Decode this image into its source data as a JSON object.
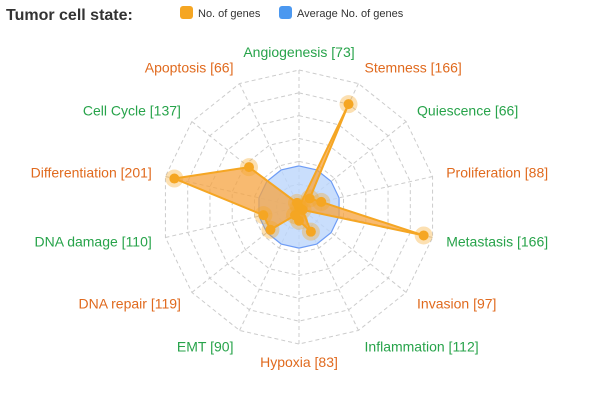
{
  "title": "Tumor cell state:",
  "legend": [
    {
      "label": "No. of genes",
      "color": "#f5a623"
    },
    {
      "label": "Average No. of genes",
      "color": "#4b98f0"
    }
  ],
  "colors": {
    "orange_label": "#e06a1e",
    "green_label": "#27a34a",
    "series_fill": "#f5a340",
    "series_stroke": "#f5a623",
    "avg_fill": "#bcd6fb",
    "avg_stroke": "#6e9cf5",
    "grid": "#cccccc"
  },
  "chart_data": {
    "type": "radar",
    "title": "Tumor cell state:",
    "categories": [
      "Angiogenesis [73]",
      "Stemness [166]",
      "Quiescence [66]",
      "Proliferation [88]",
      "Metastasis [166]",
      "Invasion [97]",
      "Inflammation [112]",
      "Hypoxia [83]",
      "EMT [90]",
      "DNA repair [119]",
      "DNA damage [110]",
      "Differentiation [201]",
      "Cell Cycle [137]",
      "Apoptosis [66]"
    ],
    "label_colors": [
      "green",
      "orange",
      "green",
      "orange",
      "green",
      "orange",
      "green",
      "orange",
      "green",
      "orange",
      "green",
      "orange",
      "green",
      "orange"
    ],
    "series": [
      {
        "name": "No. of genes",
        "values": [
          0,
          25,
          3,
          5,
          28,
          1,
          6,
          3,
          2,
          8,
          8,
          28,
          14,
          1
        ]
      },
      {
        "name": "Average No. of genes",
        "values": [
          9,
          9,
          9,
          9,
          9,
          9,
          9,
          9,
          9,
          9,
          9,
          9,
          9,
          9
        ]
      }
    ],
    "rlim": [
      0,
      30
    ],
    "rings": 6,
    "grid": true,
    "legend_position": "top"
  }
}
